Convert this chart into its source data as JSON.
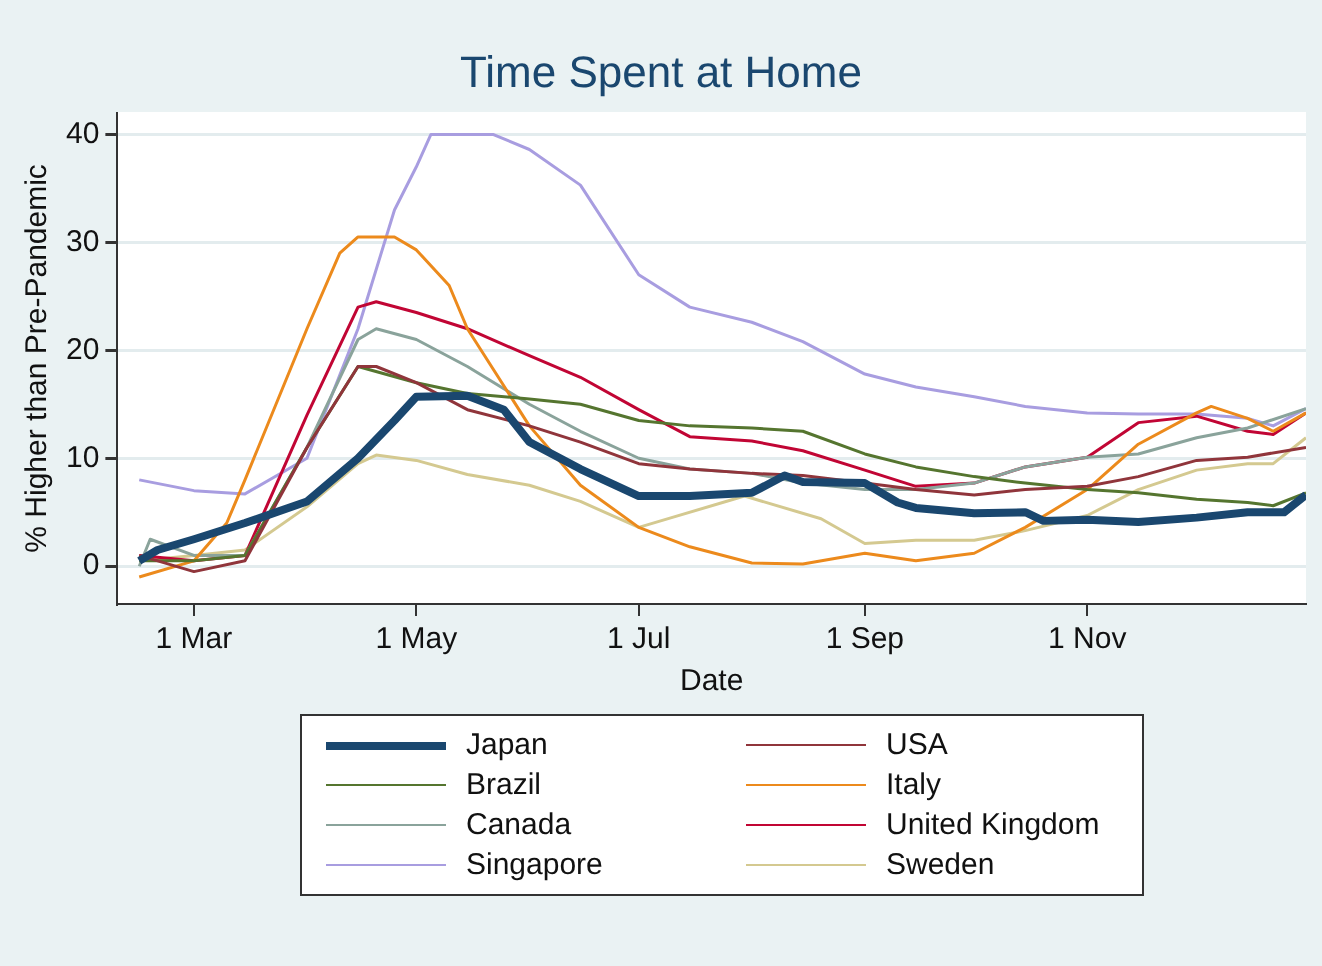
{
  "chart_data": {
    "type": "line",
    "title": "Time Spent at Home",
    "xlabel": "Date",
    "ylabel": "% Higher than Pre-Pandemic",
    "grid": "y",
    "legend": "bottom",
    "marker": "none",
    "xlim": [
      "--02-09",
      "--12-31"
    ],
    "ylim": [
      -3.5,
      42
    ],
    "xticks": [
      {
        "value": "--03-01",
        "label": "1 Mar"
      },
      {
        "value": "--05-01",
        "label": "1 May"
      },
      {
        "value": "--07-01",
        "label": "1 Jul"
      },
      {
        "value": "--09-01",
        "label": "1 Sep"
      },
      {
        "value": "--11-01",
        "label": "1 Nov"
      }
    ],
    "yticks": [
      0,
      10,
      20,
      30,
      40
    ],
    "series": [
      {
        "name": "Japan",
        "color": "#1a476f",
        "x": [
          "--02-15",
          "--02-20",
          "--03-01",
          "--03-15",
          "--04-01",
          "--04-15",
          "--04-25",
          "--05-01",
          "--05-15",
          "--05-25",
          "--06-01",
          "--06-15",
          "--07-01",
          "--07-15",
          "--08-01",
          "--08-10",
          "--08-15",
          "--09-01",
          "--09-10",
          "--09-15",
          "--10-01",
          "--10-15",
          "--10-20",
          "--11-01",
          "--11-15",
          "--12-01",
          "--12-15",
          "--12-25",
          "--12-31"
        ],
        "values": [
          0.5,
          1.5,
          2.5,
          4,
          6,
          10,
          13.5,
          15.7,
          15.8,
          14.5,
          11.5,
          9,
          6.5,
          6.5,
          6.8,
          8.4,
          7.8,
          7.7,
          5.9,
          5.4,
          4.9,
          5,
          4.2,
          4.3,
          4.1,
          4.5,
          5,
          5,
          6.6
        ]
      },
      {
        "name": "USA",
        "color": "#90353b",
        "x": [
          "--02-15",
          "--03-01",
          "--03-15",
          "--04-01",
          "--04-15",
          "--04-20",
          "--05-01",
          "--05-15",
          "--06-01",
          "--06-15",
          "--07-01",
          "--07-15",
          "--08-01",
          "--08-15",
          "--09-01",
          "--09-15",
          "--10-01",
          "--10-15",
          "--11-01",
          "--11-15",
          "--12-01",
          "--12-15",
          "--12-31"
        ],
        "values": [
          1,
          -0.5,
          0.5,
          11,
          18.5,
          18.5,
          17,
          14.5,
          13,
          11.5,
          9.5,
          9,
          8.6,
          8.4,
          7.7,
          7.1,
          6.6,
          7.1,
          7.4,
          8.3,
          9.8,
          10.1,
          11
        ]
      },
      {
        "name": "Brazil",
        "color": "#55752f",
        "x": [
          "--02-15",
          "--03-01",
          "--03-15",
          "--04-01",
          "--04-15",
          "--05-01",
          "--05-15",
          "--06-01",
          "--06-15",
          "--07-01",
          "--07-15",
          "--08-01",
          "--08-15",
          "--09-01",
          "--09-15",
          "--10-01",
          "--10-15",
          "--11-01",
          "--11-15",
          "--12-01",
          "--12-15",
          "--12-22",
          "--12-31"
        ],
        "values": [
          0.5,
          0.5,
          1,
          11,
          18.5,
          17,
          16,
          15.5,
          15,
          13.5,
          13,
          12.8,
          12.5,
          10.4,
          9.2,
          8.3,
          7.7,
          7.1,
          6.8,
          6.2,
          5.9,
          5.6,
          6.8
        ]
      },
      {
        "name": "Italy",
        "color": "#ec8a1c",
        "x": [
          "--02-15",
          "--03-01",
          "--03-10",
          "--03-15",
          "--04-01",
          "--04-10",
          "--04-15",
          "--04-25",
          "--05-01",
          "--05-10",
          "--05-15",
          "--06-01",
          "--06-15",
          "--07-01",
          "--07-15",
          "--08-01",
          "--08-15",
          "--09-01",
          "--09-15",
          "--10-01",
          "--10-15",
          "--11-01",
          "--11-15",
          "--12-01",
          "--12-05",
          "--12-15",
          "--12-22",
          "--12-31"
        ],
        "values": [
          -1,
          0.5,
          4,
          8,
          22,
          29,
          30.5,
          30.5,
          29.3,
          26,
          22,
          13,
          7.5,
          3.6,
          1.8,
          0.3,
          0.2,
          1.2,
          0.5,
          1.2,
          3.6,
          7.1,
          11.3,
          14.2,
          14.8,
          13.7,
          12.5,
          14.2
        ]
      },
      {
        "name": "Canada",
        "color": "#8aa39b",
        "x": [
          "--02-15",
          "--02-18",
          "--03-01",
          "--03-15",
          "--04-01",
          "--04-15",
          "--04-20",
          "--05-01",
          "--05-15",
          "--06-01",
          "--06-15",
          "--07-01",
          "--07-15",
          "--08-01",
          "--08-15",
          "--09-01",
          "--09-15",
          "--10-01",
          "--10-15",
          "--11-01",
          "--11-15",
          "--12-01",
          "--12-15",
          "--12-31"
        ],
        "values": [
          0,
          2.5,
          1,
          1,
          11,
          21,
          22,
          21,
          18.5,
          15,
          12.5,
          10,
          9,
          8.6,
          7.7,
          7.1,
          7.1,
          7.7,
          9.2,
          10.1,
          10.4,
          11.9,
          12.8,
          14.6
        ]
      },
      {
        "name": "United Kingdom",
        "color": "#c10534",
        "x": [
          "--02-15",
          "--03-01",
          "--03-15",
          "--04-01",
          "--04-15",
          "--04-20",
          "--05-01",
          "--05-15",
          "--06-01",
          "--06-15",
          "--07-01",
          "--07-15",
          "--08-01",
          "--08-15",
          "--09-01",
          "--09-15",
          "--10-01",
          "--10-15",
          "--11-01",
          "--11-15",
          "--12-01",
          "--12-15",
          "--12-22",
          "--12-31"
        ],
        "values": [
          1,
          0.5,
          1,
          14,
          24,
          24.5,
          23.5,
          22,
          19.5,
          17.5,
          14.5,
          12,
          11.6,
          10.7,
          8.9,
          7.4,
          7.7,
          9.2,
          10.1,
          13.3,
          13.9,
          12.5,
          12.2,
          14.2
        ]
      },
      {
        "name": "Singapore",
        "color": "#a89de0",
        "x": [
          "--02-15",
          "--03-01",
          "--03-15",
          "--04-01",
          "--04-15",
          "--04-25",
          "--05-01",
          "--05-05",
          "--05-15",
          "--05-22",
          "--06-01",
          "--06-15",
          "--07-01",
          "--07-15",
          "--08-01",
          "--08-15",
          "--09-01",
          "--09-15",
          "--10-01",
          "--10-15",
          "--11-01",
          "--11-15",
          "--12-01",
          "--12-15",
          "--12-22",
          "--12-31"
        ],
        "values": [
          8,
          7,
          6.7,
          10,
          22,
          33,
          37,
          40,
          40,
          40,
          38.6,
          35.3,
          27,
          24,
          22.6,
          20.8,
          17.8,
          16.6,
          15.7,
          14.8,
          14.2,
          14.1,
          14.1,
          13.7,
          13,
          14.6
        ]
      },
      {
        "name": "Sweden",
        "color": "#d4c990",
        "x": [
          "--02-15",
          "--03-01",
          "--03-15",
          "--04-01",
          "--04-15",
          "--04-20",
          "--05-01",
          "--05-15",
          "--06-01",
          "--06-15",
          "--07-01",
          "--07-10",
          "--07-30",
          "--08-20",
          "--09-01",
          "--09-15",
          "--10-01",
          "--10-15",
          "--11-01",
          "--11-15",
          "--12-01",
          "--12-15",
          "--12-22",
          "--12-31"
        ],
        "values": [
          0.5,
          1,
          1.5,
          5.5,
          9.5,
          10.3,
          9.8,
          8.5,
          7.5,
          6,
          3.6,
          4.5,
          6.5,
          4.4,
          2.1,
          2.4,
          2.4,
          3.3,
          4.7,
          7.1,
          8.9,
          9.5,
          9.5,
          11.9
        ]
      }
    ]
  }
}
